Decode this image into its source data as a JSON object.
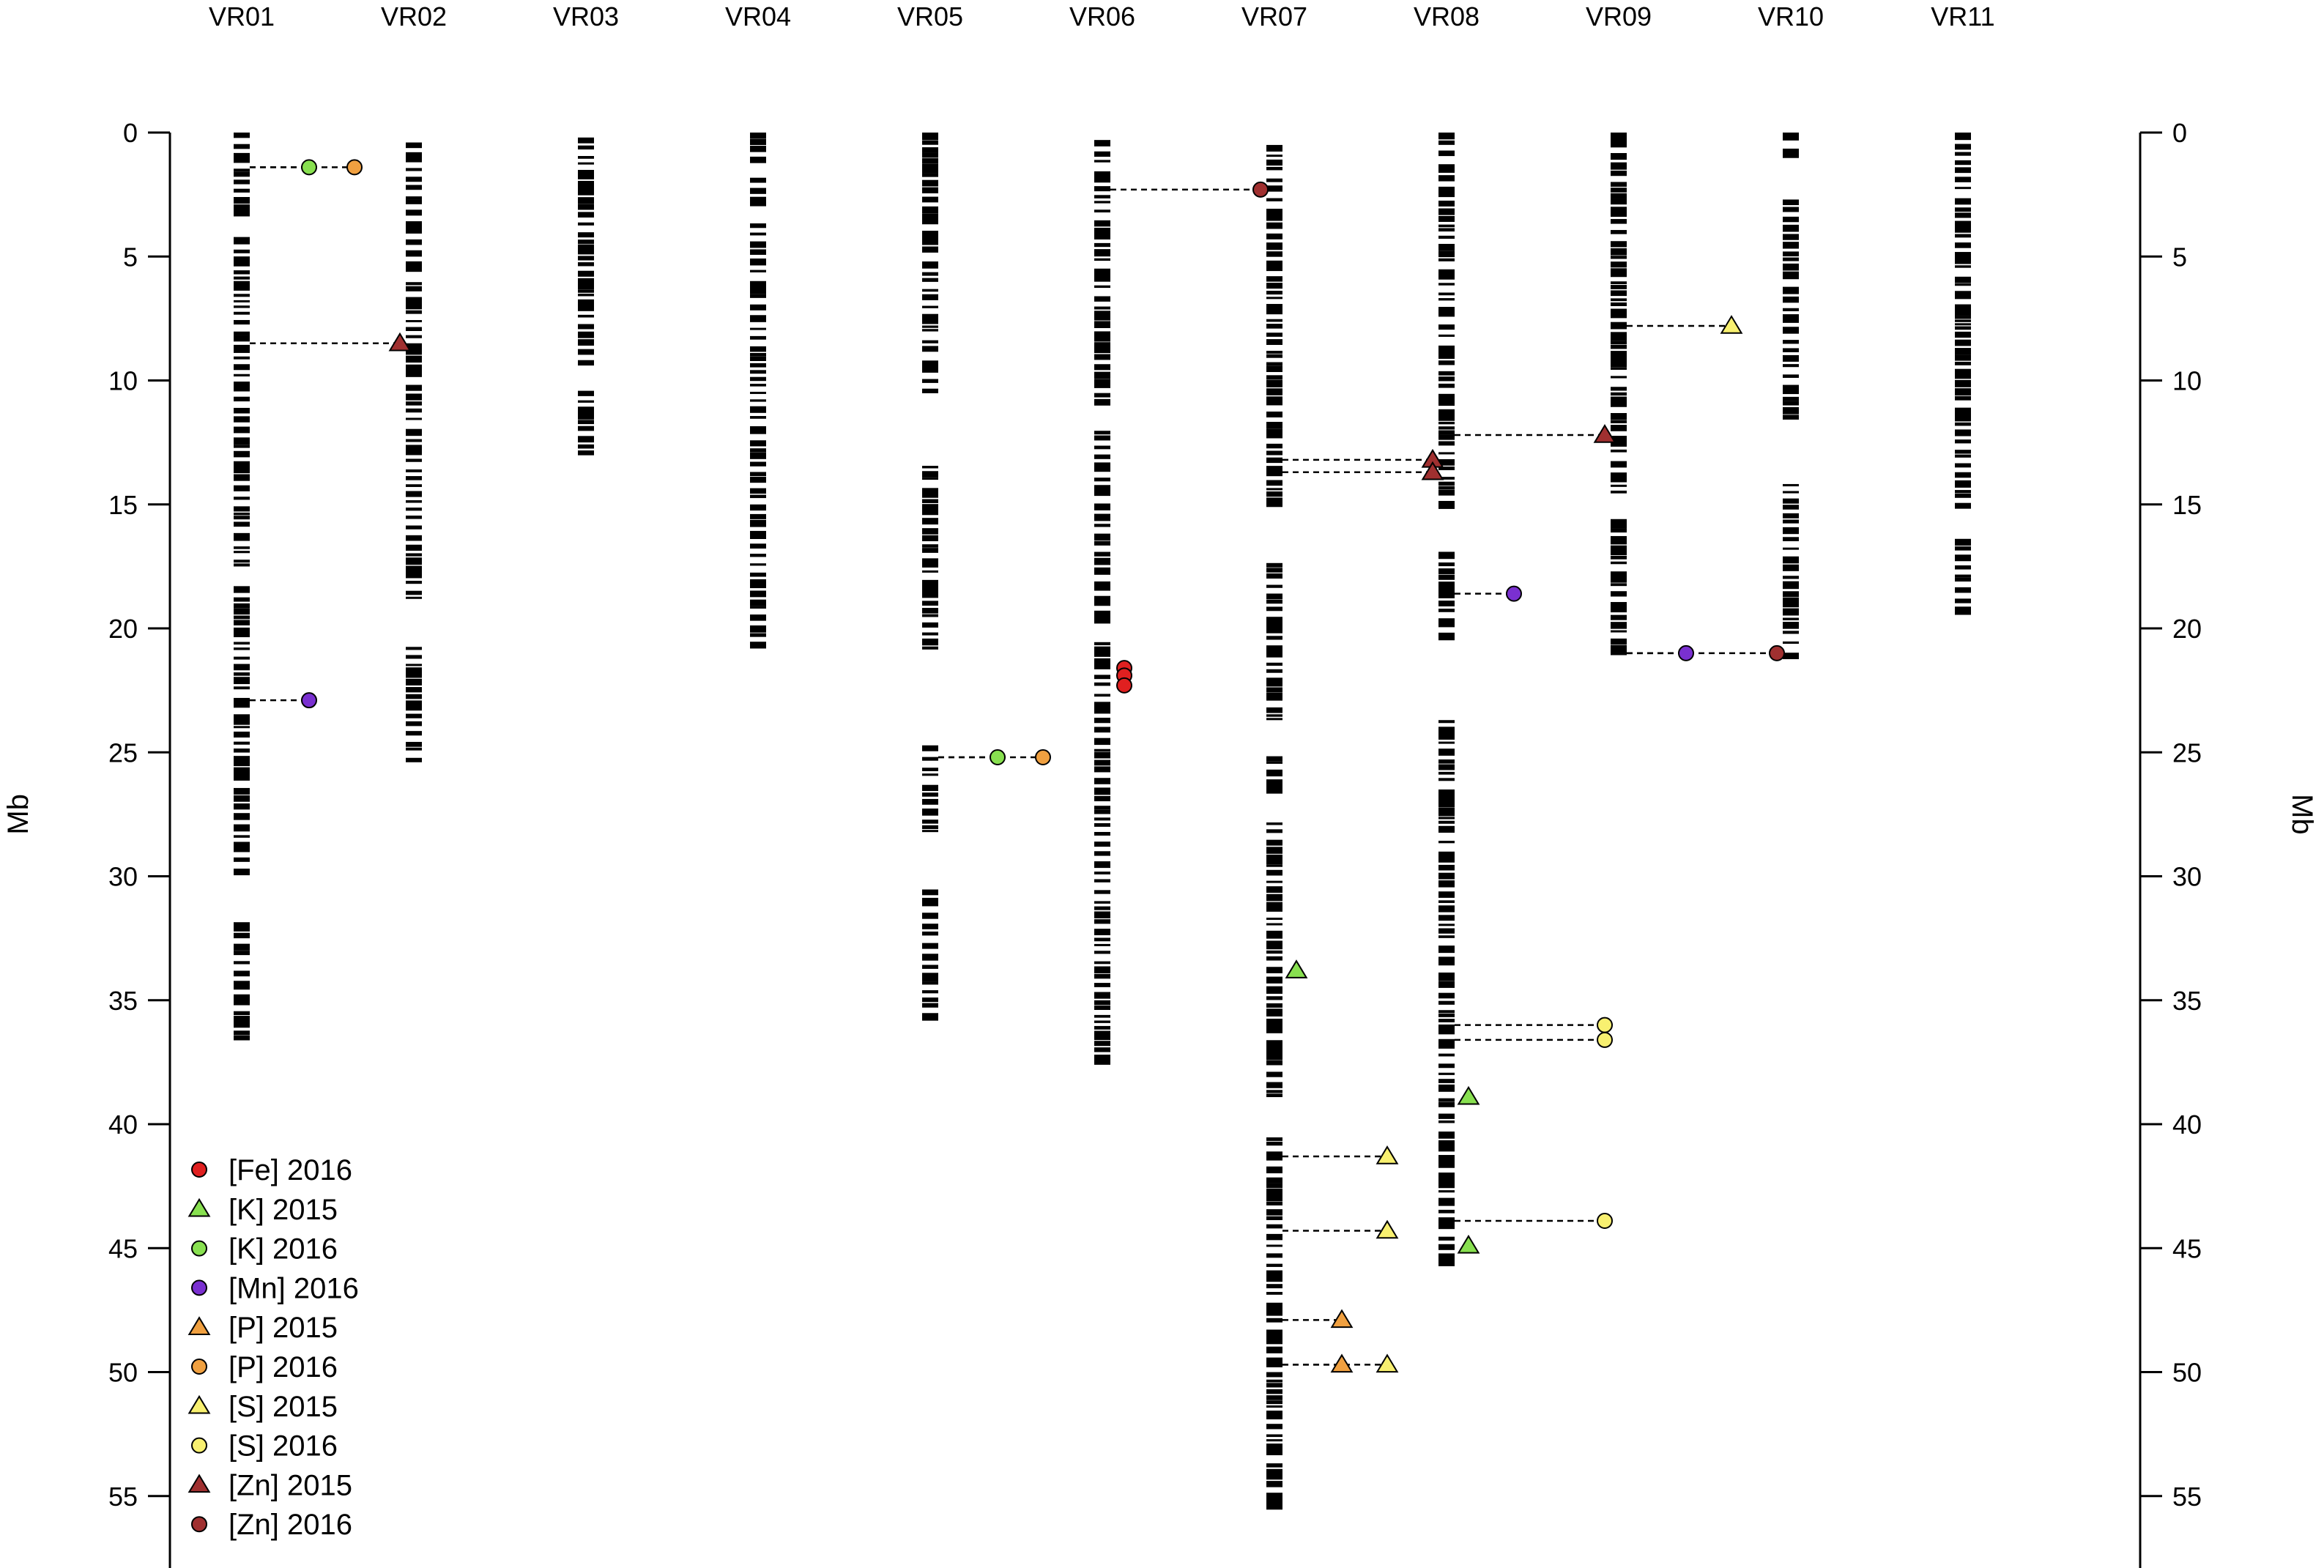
{
  "chart_data": {
    "type": "scatter",
    "title": "",
    "ylabel_left": "Mb",
    "ylabel_right": "Mb",
    "ylim": [
      0,
      58
    ],
    "yticks": [
      0,
      5,
      10,
      15,
      20,
      25,
      30,
      35,
      40,
      45,
      50,
      55
    ],
    "grid": false,
    "legend_position": "bottom-left",
    "colors": {
      "Fe": "#e02020",
      "K": "#88e050",
      "Mn": "#7a30d0",
      "P": "#f0a040",
      "S": "#f8f070",
      "Zn": "#a03030"
    },
    "legend": [
      {
        "label": "[Fe] 2016",
        "element": "Fe",
        "year": 2016
      },
      {
        "label": "[K] 2015",
        "element": "K",
        "year": 2015
      },
      {
        "label": "[K] 2016",
        "element": "K",
        "year": 2016
      },
      {
        "label": "[Mn] 2016",
        "element": "Mn",
        "year": 2016
      },
      {
        "label": "[P] 2015",
        "element": "P",
        "year": 2015
      },
      {
        "label": "[P] 2016",
        "element": "P",
        "year": 2016
      },
      {
        "label": "[S] 2015",
        "element": "S",
        "year": 2015
      },
      {
        "label": "[S] 2016",
        "element": "S",
        "year": 2016
      },
      {
        "label": "[Zn] 2015",
        "element": "Zn",
        "year": 2015
      },
      {
        "label": "[Zn] 2016",
        "element": "Zn",
        "year": 2016
      }
    ],
    "chromosomes": [
      {
        "name": "VR01",
        "length": 36.6,
        "gaps": [
          [
            3.4,
            4.2
          ],
          [
            17.6,
            18.2
          ],
          [
            29.8,
            31.8
          ]
        ]
      },
      {
        "name": "VR02",
        "length": 25.4,
        "start": 0.4,
        "gaps": [
          [
            5.4,
            6.0
          ],
          [
            19.0,
            20.6
          ]
        ]
      },
      {
        "name": "VR03",
        "length": 13.0,
        "start": 0.2,
        "gaps": [
          [
            9.6,
            10.2
          ]
        ]
      },
      {
        "name": "VR04",
        "length": 20.8,
        "gaps": [
          [
            1.0,
            1.8
          ],
          [
            2.8,
            3.6
          ]
        ]
      },
      {
        "name": "VR05",
        "length": 35.8,
        "gaps": [
          [
            10.4,
            13.4
          ],
          [
            20.8,
            24.4
          ],
          [
            28.2,
            30.2
          ]
        ]
      },
      {
        "name": "VR06",
        "length": 37.5,
        "start": 0.3,
        "gaps": [
          [
            10.8,
            12.0
          ],
          [
            19.6,
            20.4
          ]
        ]
      },
      {
        "name": "VR07",
        "length": 55.5,
        "start": 0.5,
        "gaps": [
          [
            15.2,
            17.0
          ],
          [
            23.8,
            25.0
          ],
          [
            26.6,
            27.8
          ],
          [
            38.8,
            40.4
          ]
        ]
      },
      {
        "name": "VR08",
        "length": 45.7,
        "gaps": [
          [
            15.2,
            16.8
          ],
          [
            20.4,
            23.6
          ]
        ]
      },
      {
        "name": "VR09",
        "length": 21.0,
        "gaps": [
          [
            14.6,
            15.4
          ]
        ]
      },
      {
        "name": "VR10",
        "length": 21.2,
        "gaps": [
          [
            1.0,
            2.4
          ],
          [
            11.4,
            14.0
          ]
        ]
      },
      {
        "name": "VR11",
        "length": 19.3,
        "gaps": [
          [
            15.0,
            16.2
          ]
        ]
      }
    ],
    "markers": [
      {
        "chr": "VR01",
        "pos": 1.4,
        "element": "K",
        "year": 2016,
        "offset": 1
      },
      {
        "chr": "VR01",
        "pos": 1.4,
        "element": "P",
        "year": 2016,
        "offset": 2
      },
      {
        "chr": "VR01",
        "pos": 8.5,
        "element": "Zn",
        "year": 2015,
        "offset": 3
      },
      {
        "chr": "VR01",
        "pos": 22.9,
        "element": "Mn",
        "year": 2016,
        "offset": 1
      },
      {
        "chr": "VR05",
        "pos": 25.2,
        "element": "K",
        "year": 2016,
        "offset": 1
      },
      {
        "chr": "VR05",
        "pos": 25.2,
        "element": "P",
        "year": 2016,
        "offset": 2
      },
      {
        "chr": "VR06",
        "pos": 2.3,
        "element": "Zn",
        "year": 2016,
        "offset": 3
      },
      {
        "chr": "VR06",
        "pos": 21.6,
        "element": "Fe",
        "year": 2016,
        "offset": 0
      },
      {
        "chr": "VR06",
        "pos": 21.9,
        "element": "Fe",
        "year": 2016,
        "offset": 0
      },
      {
        "chr": "VR06",
        "pos": 22.3,
        "element": "Fe",
        "year": 2016,
        "offset": 0
      },
      {
        "chr": "VR07",
        "pos": 13.2,
        "element": "Zn",
        "year": 2015,
        "offset": 3
      },
      {
        "chr": "VR07",
        "pos": 13.7,
        "element": "Zn",
        "year": 2015,
        "offset": 3
      },
      {
        "chr": "VR07",
        "pos": 33.8,
        "element": "K",
        "year": 2015,
        "offset": 0
      },
      {
        "chr": "VR07",
        "pos": 41.3,
        "element": "S",
        "year": 2015,
        "offset": 2
      },
      {
        "chr": "VR07",
        "pos": 44.3,
        "element": "S",
        "year": 2015,
        "offset": 2
      },
      {
        "chr": "VR07",
        "pos": 47.9,
        "element": "P",
        "year": 2015,
        "offset": 1
      },
      {
        "chr": "VR07",
        "pos": 49.7,
        "element": "P",
        "year": 2015,
        "offset": 1
      },
      {
        "chr": "VR07",
        "pos": 49.7,
        "element": "S",
        "year": 2015,
        "offset": 2
      },
      {
        "chr": "VR08",
        "pos": 12.2,
        "element": "Zn",
        "year": 2015,
        "offset": 3
      },
      {
        "chr": "VR08",
        "pos": 18.6,
        "element": "Mn",
        "year": 2016,
        "offset": 1
      },
      {
        "chr": "VR08",
        "pos": 36.0,
        "element": "S",
        "year": 2016,
        "offset": 3
      },
      {
        "chr": "VR08",
        "pos": 36.6,
        "element": "S",
        "year": 2016,
        "offset": 3
      },
      {
        "chr": "VR08",
        "pos": 38.9,
        "element": "K",
        "year": 2015,
        "offset": 0
      },
      {
        "chr": "VR08",
        "pos": 43.9,
        "element": "S",
        "year": 2016,
        "offset": 3
      },
      {
        "chr": "VR08",
        "pos": 44.9,
        "element": "K",
        "year": 2015,
        "offset": 0
      },
      {
        "chr": "VR09",
        "pos": 7.8,
        "element": "S",
        "year": 2015,
        "offset": 2
      },
      {
        "chr": "VR09",
        "pos": 21.0,
        "element": "Mn",
        "year": 2016,
        "offset": 1
      },
      {
        "chr": "VR09",
        "pos": 21.0,
        "element": "Zn",
        "year": 2016,
        "offset": 3
      }
    ]
  }
}
